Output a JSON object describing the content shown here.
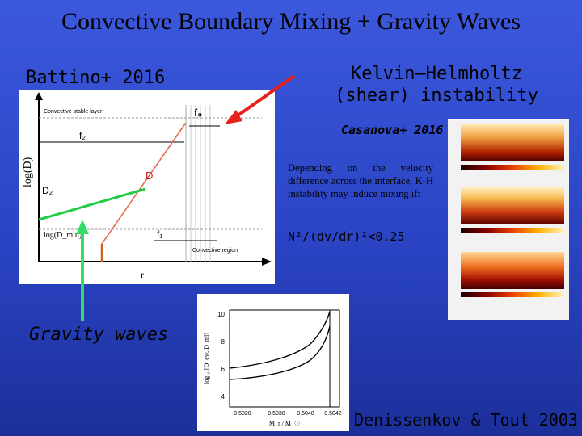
{
  "slide": {
    "title": "Convective Boundary Mixing + Gravity Waves",
    "battino_label": "Battino+ 2016",
    "kh_label": "Kelvin–Helmholtz (shear) instability",
    "casanova_label": "Casanova+ 2016",
    "depending_text": "Depending on the velocity difference across the interface, K-H instability may induce mixing if:",
    "criterion": "N²/(dv/dr)²<0.25",
    "gravity_label": "Gravity waves",
    "denissenkov_label": "Denissenkov & Tout 2003"
  },
  "battino_figure": {
    "ylabel": "log(D)",
    "xlabel": "r",
    "convective_layer": "Convective stable layer",
    "convective_region": "Convective region",
    "f0": "f₀",
    "f2": "f₂",
    "f1": "f₁",
    "d_label": "D",
    "d2_label": "D₂",
    "dmin_label": "log(D_min)"
  },
  "denissenkov_figure": {
    "ylabel": "log₁₀ [D_ew, D_ml]",
    "xlabel": "M_r / M_☉",
    "y_ticks": [
      "10",
      "8",
      "6",
      "4"
    ],
    "x_ticks": [
      "0.5020",
      "0.5030",
      "0.5040",
      "0.5042"
    ]
  },
  "colors": {
    "background": "#2f4ad0",
    "red_arrow": "#e8201c",
    "green_arrow": "#33dd66"
  }
}
